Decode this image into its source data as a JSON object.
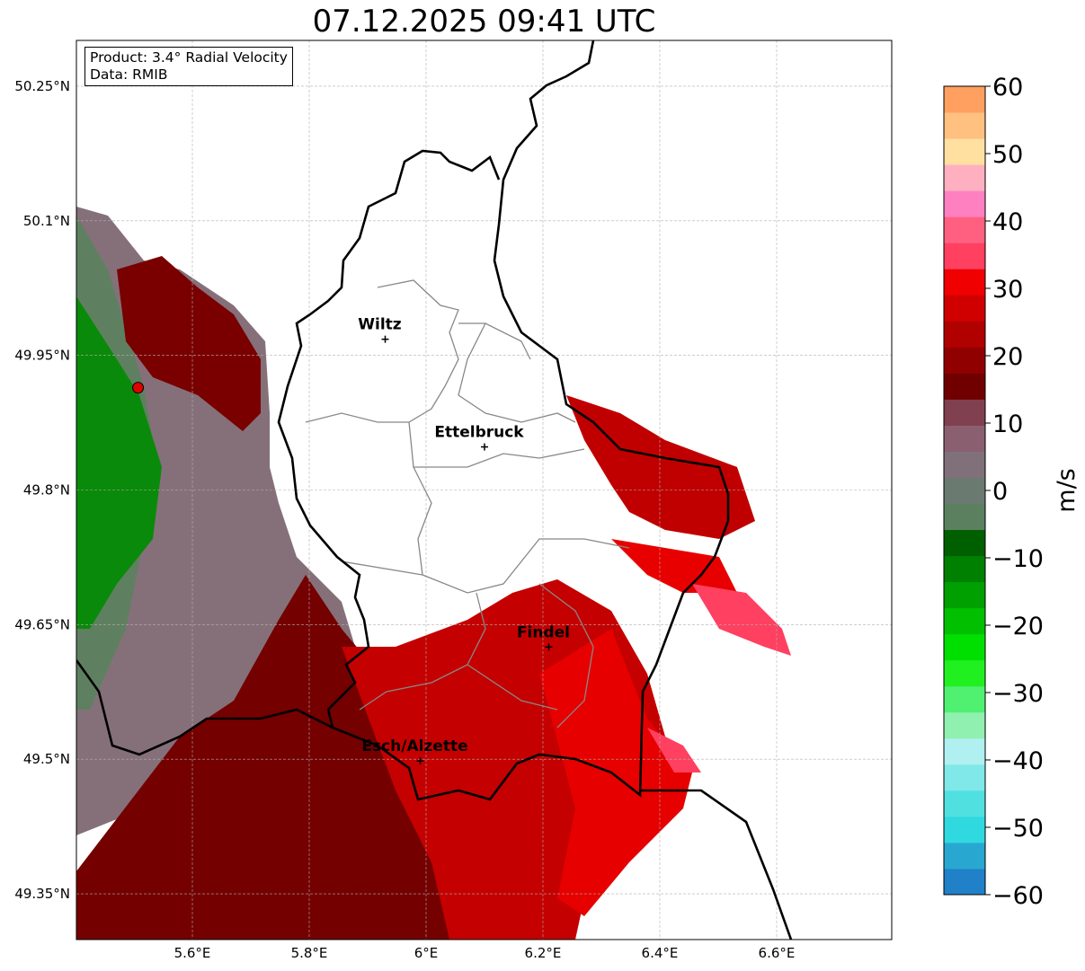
{
  "title": "07.12.2025 09:41 UTC",
  "info": {
    "product": "Product: 3.4° Radial Velocity",
    "data": "Data: RMIB"
  },
  "map": {
    "lon_range": [
      5.4015,
      6.797
    ],
    "lat_range": [
      49.299,
      50.301
    ],
    "lon_ticks": [
      {
        "v": 5.6,
        "label": "5.6°E"
      },
      {
        "v": 5.8,
        "label": "5.8°E"
      },
      {
        "v": 6.0,
        "label": "6°E"
      },
      {
        "v": 6.2,
        "label": "6.2°E"
      },
      {
        "v": 6.4,
        "label": "6.4°E"
      },
      {
        "v": 6.6,
        "label": "6.6°E"
      }
    ],
    "lat_ticks": [
      {
        "v": 50.25,
        "label": "50.25°N"
      },
      {
        "v": 50.1,
        "label": "50.1°N"
      },
      {
        "v": 49.95,
        "label": "49.95°N"
      },
      {
        "v": 49.8,
        "label": "49.8°N"
      },
      {
        "v": 49.65,
        "label": "49.65°N"
      },
      {
        "v": 49.5,
        "label": "49.5°N"
      },
      {
        "v": 49.35,
        "label": "49.35°N"
      }
    ],
    "cities": [
      {
        "name": "Wiltz",
        "lon": 5.93,
        "lat": 49.968
      },
      {
        "name": "Ettelbruck",
        "lon": 6.1,
        "lat": 49.848
      },
      {
        "name": "Findel",
        "lon": 6.21,
        "lat": 49.625
      },
      {
        "name": "Esch/Alzette",
        "lon": 5.99,
        "lat": 49.498
      }
    ],
    "radar_site": {
      "lon": 5.507,
      "lat": 49.914
    }
  },
  "colorbar": {
    "label": "m/s",
    "min": -60,
    "max": 60,
    "ticks": [
      60,
      50,
      40,
      30,
      20,
      10,
      0,
      -10,
      -20,
      -30,
      -40,
      -50,
      -60
    ],
    "colors": [
      "#2080c8",
      "#28a8d0",
      "#30d8e0",
      "#50e0e0",
      "#80e8e8",
      "#b0f0f0",
      "#90f0b0",
      "#50f070",
      "#20f020",
      "#00e000",
      "#00c000",
      "#00a000",
      "#008000",
      "#006000",
      "#5a8060",
      "#6a7a70",
      "#80707a",
      "#8a6070",
      "#804050",
      "#700000",
      "#900000",
      "#b00000",
      "#d00000",
      "#f00000",
      "#ff4060",
      "#ff6080",
      "#ff80c0",
      "#ffb0c0",
      "#ffe0a0",
      "#ffc080",
      "#ffa060"
    ]
  }
}
